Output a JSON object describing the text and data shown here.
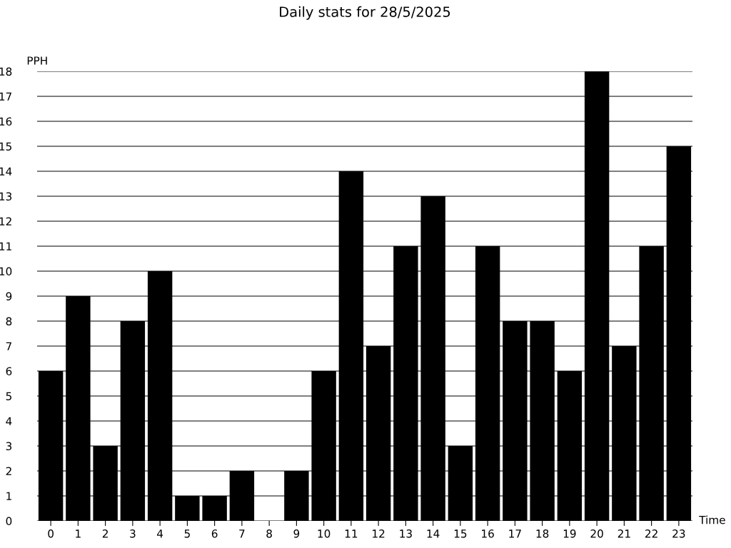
{
  "chart_data": {
    "type": "bar",
    "title": "Daily stats for 28/5/2025",
    "xlabel": "Time",
    "ylabel": "PPH",
    "categories": [
      "0",
      "1",
      "2",
      "3",
      "4",
      "5",
      "6",
      "7",
      "8",
      "9",
      "10",
      "11",
      "12",
      "13",
      "14",
      "15",
      "16",
      "17",
      "18",
      "19",
      "20",
      "21",
      "22",
      "23"
    ],
    "values": [
      6,
      9,
      3,
      8,
      10,
      1,
      1,
      2,
      0,
      2,
      6,
      14,
      7,
      11,
      13,
      3,
      11,
      8,
      8,
      6,
      18,
      7,
      11,
      15
    ],
    "color": "#000000",
    "ylim": [
      0,
      18
    ],
    "yticks": [
      0,
      1,
      2,
      3,
      4,
      5,
      6,
      7,
      8,
      9,
      10,
      11,
      12,
      13,
      14,
      15,
      16,
      17,
      18
    ],
    "grid": "y",
    "legend": false
  }
}
